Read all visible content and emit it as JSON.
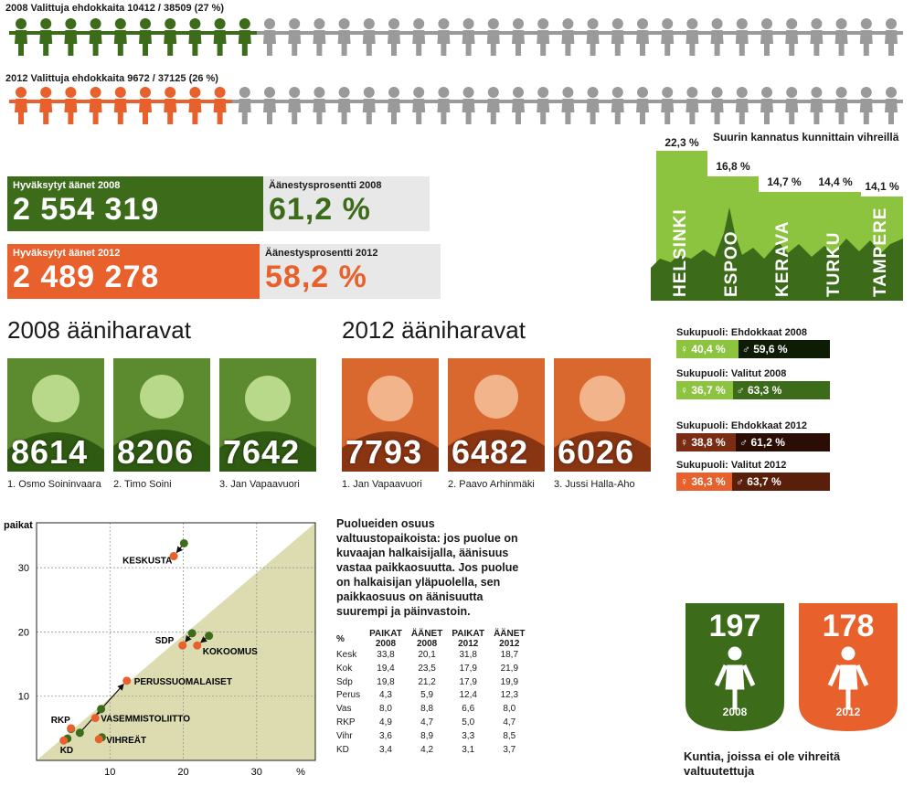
{
  "top": {
    "row2008": {
      "caption": "2008 Valittuja ehdokkaita 10412 / 38509 (27 %)",
      "selected_share": 0.27
    },
    "row2012": {
      "caption": "2012 Valittuja ehdokkaita 9672 / 37125 (26 %)",
      "selected_share": 0.26
    }
  },
  "stats": {
    "votes2008": {
      "label": "Hyväksytyt äänet 2008",
      "value": "2 554 319"
    },
    "turnout2008": {
      "label": "Äänestysprosentti 2008",
      "value": "61,2 %"
    },
    "votes2012": {
      "label": "Hyväksytyt äänet 2012",
      "value": "2 489 278"
    },
    "turnout2012": {
      "label": "Äänestysprosentti 2012",
      "value": "58,2 %"
    }
  },
  "cities": {
    "title": "Suurin kannatus kunnittain vihreillä",
    "items": [
      {
        "name": "HELSINKI",
        "pct": "22,3 %",
        "value": 22.3
      },
      {
        "name": "ESPOO",
        "pct": "16,8 %",
        "value": 16.8
      },
      {
        "name": "KERAVA",
        "pct": "14,7 %",
        "value": 14.7
      },
      {
        "name": "TURKU",
        "pct": "14,4 %",
        "value": 14.4
      },
      {
        "name": "TAMPERE",
        "pct": "14,1 %",
        "value": 14.1
      }
    ]
  },
  "harvesters2008": {
    "title": "2008 ääniharavat",
    "people": [
      {
        "votes": "8614",
        "name": "1. Osmo Soininvaara"
      },
      {
        "votes": "8206",
        "name": "2. Timo Soini"
      },
      {
        "votes": "7642",
        "name": "3. Jan Vapaavuori"
      }
    ]
  },
  "harvesters2012": {
    "title": "2012 ääniharavat",
    "people": [
      {
        "votes": "7793",
        "name": "1. Jan Vapaavuori"
      },
      {
        "votes": "6482",
        "name": "2. Paavo Arhinmäki"
      },
      {
        "votes": "6026",
        "name": "3. Jussi Halla-Aho"
      }
    ]
  },
  "gender": [
    {
      "title": "Sukupuoli: Ehdokkaat 2008",
      "female": "40,4 %",
      "male": "59,6 %",
      "female_share": 40.4
    },
    {
      "title": "Sukupuoli: Valitut 2008",
      "female": "36,7 %",
      "male": "63,3 %",
      "female_share": 36.7
    },
    {
      "title": "Sukupuoli: Ehdokkaat 2012",
      "female": "38,8 %",
      "male": "61,2 %",
      "female_share": 38.8
    },
    {
      "title": "Sukupuoli: Valitut 2012",
      "female": "36,3 %",
      "male": "63,7 %",
      "female_share": 36.3
    }
  ],
  "symbols": {
    "female": "♀",
    "male": "♂"
  },
  "chart_data": {
    "type": "scatter",
    "ylabel": "paikat",
    "xlabel": "%",
    "xticks": [
      "10",
      "20",
      "30"
    ],
    "yticks": [
      "10",
      "20",
      "30"
    ],
    "xlim": [
      0,
      38
    ],
    "ylim": [
      0,
      37
    ],
    "series": [
      {
        "name": "2008",
        "color": "#3c6b1a"
      },
      {
        "name": "2012",
        "color": "#e8602c"
      }
    ],
    "parties": [
      {
        "label": "KESKUSTA",
        "v2008": 20.1,
        "s2008": 33.8,
        "v2012": 18.7,
        "s2012": 31.8
      },
      {
        "label": "KOKOOMUS",
        "v2008": 23.5,
        "s2008": 19.4,
        "v2012": 21.9,
        "s2012": 17.9
      },
      {
        "label": "SDP",
        "v2008": 21.2,
        "s2008": 19.8,
        "v2012": 19.9,
        "s2012": 17.9
      },
      {
        "label": "PERUSSUOMALAISET",
        "v2008": 5.9,
        "s2008": 4.3,
        "v2012": 12.3,
        "s2012": 12.4
      },
      {
        "label": "VASEMMISTOLIITTO",
        "v2008": 8.8,
        "s2008": 8.0,
        "v2012": 8.0,
        "s2012": 6.6
      },
      {
        "label": "RKP",
        "v2008": 4.7,
        "s2008": 4.9,
        "v2012": 4.7,
        "s2012": 5.0
      },
      {
        "label": "VIHREÄT",
        "v2008": 8.9,
        "s2008": 3.6,
        "v2012": 8.5,
        "s2012": 3.3
      },
      {
        "label": "KD",
        "v2008": 4.2,
        "s2008": 3.4,
        "v2012": 3.7,
        "s2012": 3.1
      }
    ]
  },
  "explanation": "Puolueiden osuus valtuustopaikoista: jos puolue on kuvaajan halkaisijalla, äänisuus vastaa paikkaosuutta. Jos puolue on halkaisijan yläpuolella, sen paikkaosuus on äänisuutta suurempi ja päinvastoin.",
  "table": {
    "headers": [
      "%",
      "PAIKAT 2008",
      "ÄÄNET 2008",
      "PAIKAT 2012",
      "ÄÄNET 2012"
    ],
    "rows": [
      [
        "Kesk",
        "33,8",
        "20,1",
        "31,8",
        "18,7"
      ],
      [
        "Kok",
        "19,4",
        "23,5",
        "17,9",
        "21,9"
      ],
      [
        "Sdp",
        "19,8",
        "21,2",
        "17,9",
        "19,9"
      ],
      [
        "Perus",
        "4,3",
        "5,9",
        "12,4",
        "12,3"
      ],
      [
        "Vas",
        "8,0",
        "8,8",
        "6,6",
        "8,0"
      ],
      [
        "RKP",
        "4,9",
        "4,7",
        "5,0",
        "4,7"
      ],
      [
        "Vihr",
        "3,6",
        "8,9",
        "3,3",
        "8,5"
      ],
      [
        "KD",
        "3,4",
        "4,2",
        "3,1",
        "3,7"
      ]
    ]
  },
  "shields": [
    {
      "num": "197",
      "year": "2008",
      "color": "#3c6b1a"
    },
    {
      "num": "178",
      "year": "2012",
      "color": "#e8602c"
    }
  ],
  "shields_caption": "Kuntia, joissa ei ole vihreitä valtuutettuja"
}
